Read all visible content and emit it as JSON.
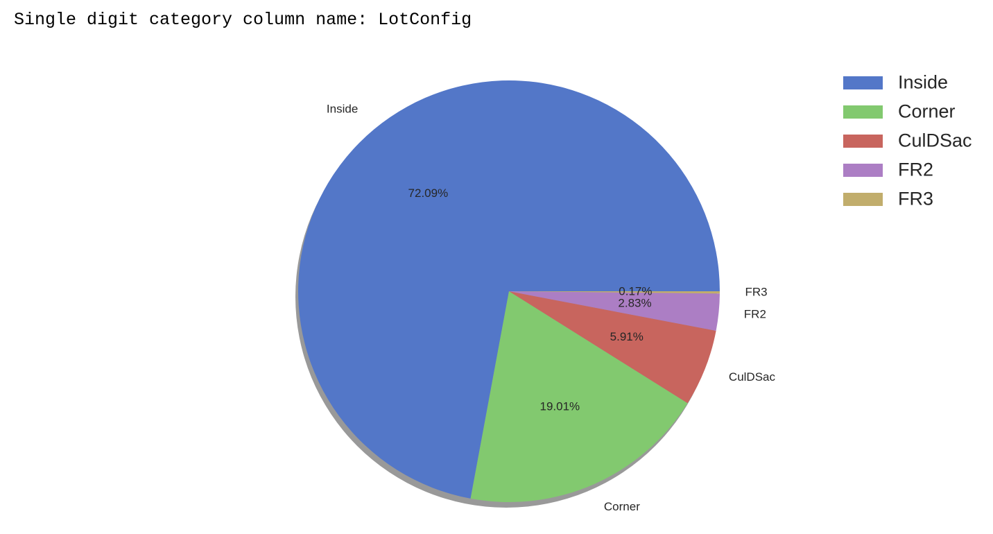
{
  "output": {
    "text": "Single digit category column name: LotConfig"
  },
  "chart_data": {
    "type": "pie",
    "shadow": true,
    "start_angle_deg": 0,
    "direction": "counterclockwise",
    "legend_position": "top-right",
    "categories": [
      "Inside",
      "Corner",
      "CulDSac",
      "FR2",
      "FR3"
    ],
    "values": [
      72.09,
      19.01,
      5.91,
      2.83,
      0.17
    ],
    "percent_labels": [
      "72.09%",
      "19.01%",
      "5.91%",
      "2.83%",
      "0.17%"
    ],
    "colors": [
      "#5377c8",
      "#82c96f",
      "#c8655e",
      "#ac7ec4",
      "#c1ad6c"
    ],
    "shadow_color": "#999999"
  }
}
